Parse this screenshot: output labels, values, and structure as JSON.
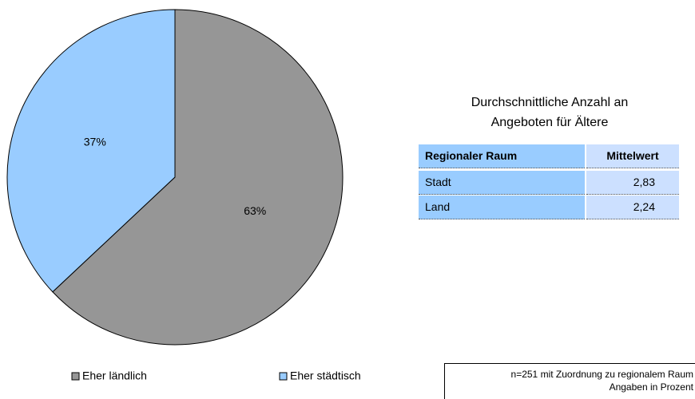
{
  "chart_data": {
    "type": "pie",
    "categories": [
      "Eher ländlich",
      "Eher städtisch"
    ],
    "values": [
      63,
      37
    ],
    "value_labels": [
      "63%",
      "37%"
    ],
    "colors": [
      "#969696",
      "#99ccff"
    ]
  },
  "table": {
    "title": [
      "Durchschnittliche Anzahl an",
      "Angeboten für Ältere"
    ],
    "header": [
      "Regionaler Raum",
      "Mittelwert"
    ],
    "rows": [
      [
        "Stadt",
        "2,83"
      ],
      [
        "Land",
        "2,24"
      ]
    ]
  },
  "note": [
    "n=251 mit Zuordnung zu regionalem Raum",
    "Angaben in Prozent"
  ]
}
